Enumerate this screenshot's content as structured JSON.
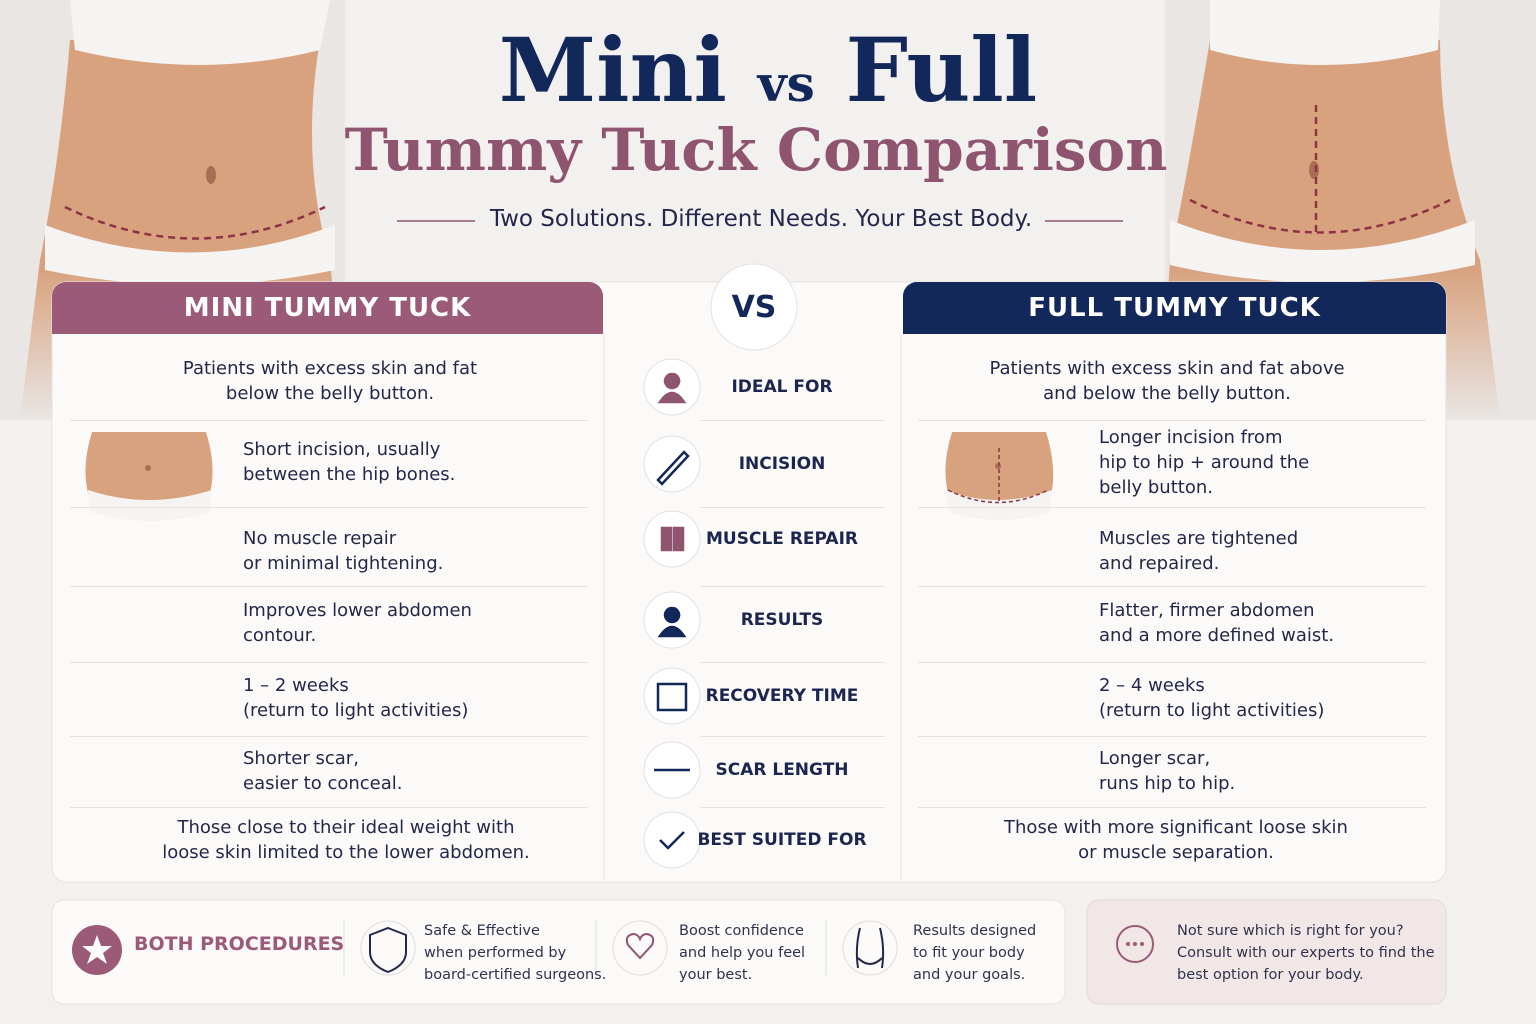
{
  "header": {
    "title_mini": "Mini",
    "title_vs": "vs",
    "title_full": "Full",
    "title_sub": "Tummy Tuck Comparison",
    "tagline": "Two Solutions. Different Needs. Your Best Body."
  },
  "mini": {
    "heading": "MINI TUMMY TUCK",
    "rows": [
      [
        "Patients with excess skin and fat",
        "below the belly button."
      ],
      [
        "Short incision, usually",
        "between the hip bones."
      ],
      [
        "No muscle repair",
        "or minimal tightening."
      ],
      [
        "Improves lower abdomen",
        "contour."
      ],
      [
        "1 – 2 weeks",
        "(return to light activities)"
      ],
      [
        "Shorter scar,",
        "easier to conceal."
      ],
      [
        "Those close to their ideal weight with",
        "loose skin limited to the lower abdomen."
      ]
    ]
  },
  "center": {
    "vs": "VS",
    "labels": [
      "IDEAL FOR",
      "INCISION",
      "MUSCLE REPAIR",
      "RESULTS",
      "RECOVERY TIME",
      "SCAR LENGTH",
      "BEST SUITED FOR"
    ]
  },
  "full": {
    "heading": "FULL TUMMY TUCK",
    "rows": [
      [
        "Patients with excess skin and fat above",
        "and below the belly button."
      ],
      [
        "Longer incision from",
        "hip to hip + around the",
        "belly button."
      ],
      [
        "Muscles are tightened",
        "and repaired."
      ],
      [
        "Flatter, firmer abdomen",
        "and a more defined waist."
      ],
      [
        "2 – 4 weeks",
        "(return to light activities)"
      ],
      [
        "Longer scar,",
        "runs hip to hip."
      ],
      [
        "Those with more significant loose skin",
        "or muscle separation."
      ]
    ]
  },
  "footer": {
    "label": "BOTH PROCEDURES",
    "items": [
      [
        "Safe & Effective",
        "when performed by",
        "board-certified surgeons."
      ],
      [
        "Boost confidence",
        "and help you feel",
        "your best."
      ],
      [
        "Results designed",
        "to fit your body",
        "and your goals."
      ]
    ],
    "consult": [
      "Not sure which is right for you?",
      "Consult with our experts to find the",
      "best option for your body."
    ]
  }
}
